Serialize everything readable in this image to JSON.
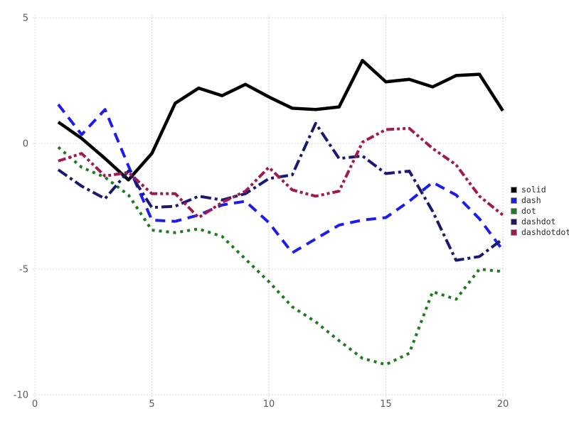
{
  "chart_data": {
    "type": "line",
    "title": "",
    "xlabel": "",
    "ylabel": "",
    "xlim": [
      0,
      20
    ],
    "ylim": [
      -10,
      5
    ],
    "xticks": [
      "0",
      "5",
      "10",
      "15",
      "20"
    ],
    "yticks": [
      "5",
      "0",
      "-5",
      "-10"
    ],
    "xtick_values": [
      0,
      5,
      10,
      15,
      20
    ],
    "ytick_values": [
      5,
      0,
      -5,
      -10
    ],
    "grid": "dotted",
    "grid_color": "#cccccc",
    "tick_text_color": "#5a5a5a",
    "legend_position": "right",
    "x": [
      1,
      2,
      3,
      4,
      5,
      6,
      7,
      8,
      9,
      10,
      11,
      12,
      13,
      14,
      15,
      16,
      17,
      18,
      19,
      20
    ],
    "series": [
      {
        "name": "solid",
        "line_style": "solid",
        "color": "#000000",
        "values": [
          0.85,
          0.2,
          -0.6,
          -1.45,
          -0.4,
          1.6,
          2.2,
          1.9,
          2.35,
          1.85,
          1.4,
          1.35,
          1.45,
          3.3,
          2.45,
          2.55,
          2.25,
          2.7,
          2.75,
          1.3
        ]
      },
      {
        "name": "dash",
        "line_style": "dash",
        "color": "#1c1cf0",
        "values": [
          1.55,
          0.35,
          1.35,
          -0.9,
          -3.05,
          -3.1,
          -2.85,
          -2.45,
          -2.3,
          -3.15,
          -4.35,
          -3.8,
          -3.25,
          -3.05,
          -2.95,
          -2.3,
          -1.55,
          -2.05,
          -3.0,
          -4.25
        ]
      },
      {
        "name": "dot",
        "line_style": "dot",
        "color": "#1e7a1e",
        "values": [
          -0.15,
          -0.95,
          -1.35,
          -2.05,
          -3.45,
          -3.55,
          -3.4,
          -3.7,
          -4.6,
          -5.5,
          -6.5,
          -7.1,
          -7.85,
          -8.55,
          -8.8,
          -8.35,
          -5.9,
          -6.2,
          -5.0,
          -5.1
        ]
      },
      {
        "name": "dashdot",
        "line_style": "dashdot",
        "color": "#191970",
        "values": [
          -1.05,
          -1.7,
          -2.2,
          -1.1,
          -2.55,
          -2.5,
          -2.1,
          -2.25,
          -2.0,
          -1.4,
          -1.25,
          0.8,
          -0.6,
          -0.5,
          -1.2,
          -1.1,
          -2.7,
          -4.65,
          -4.5,
          -3.8
        ]
      },
      {
        "name": "dashdotdot",
        "line_style": "dashdotdot",
        "color": "#a01a50",
        "values": [
          -0.7,
          -0.4,
          -1.3,
          -1.15,
          -2.0,
          -2.0,
          -2.95,
          -2.35,
          -1.9,
          -0.95,
          -1.85,
          -2.1,
          -1.9,
          0.05,
          0.55,
          0.6,
          -0.2,
          -0.85,
          -2.1,
          -2.85
        ]
      }
    ]
  }
}
